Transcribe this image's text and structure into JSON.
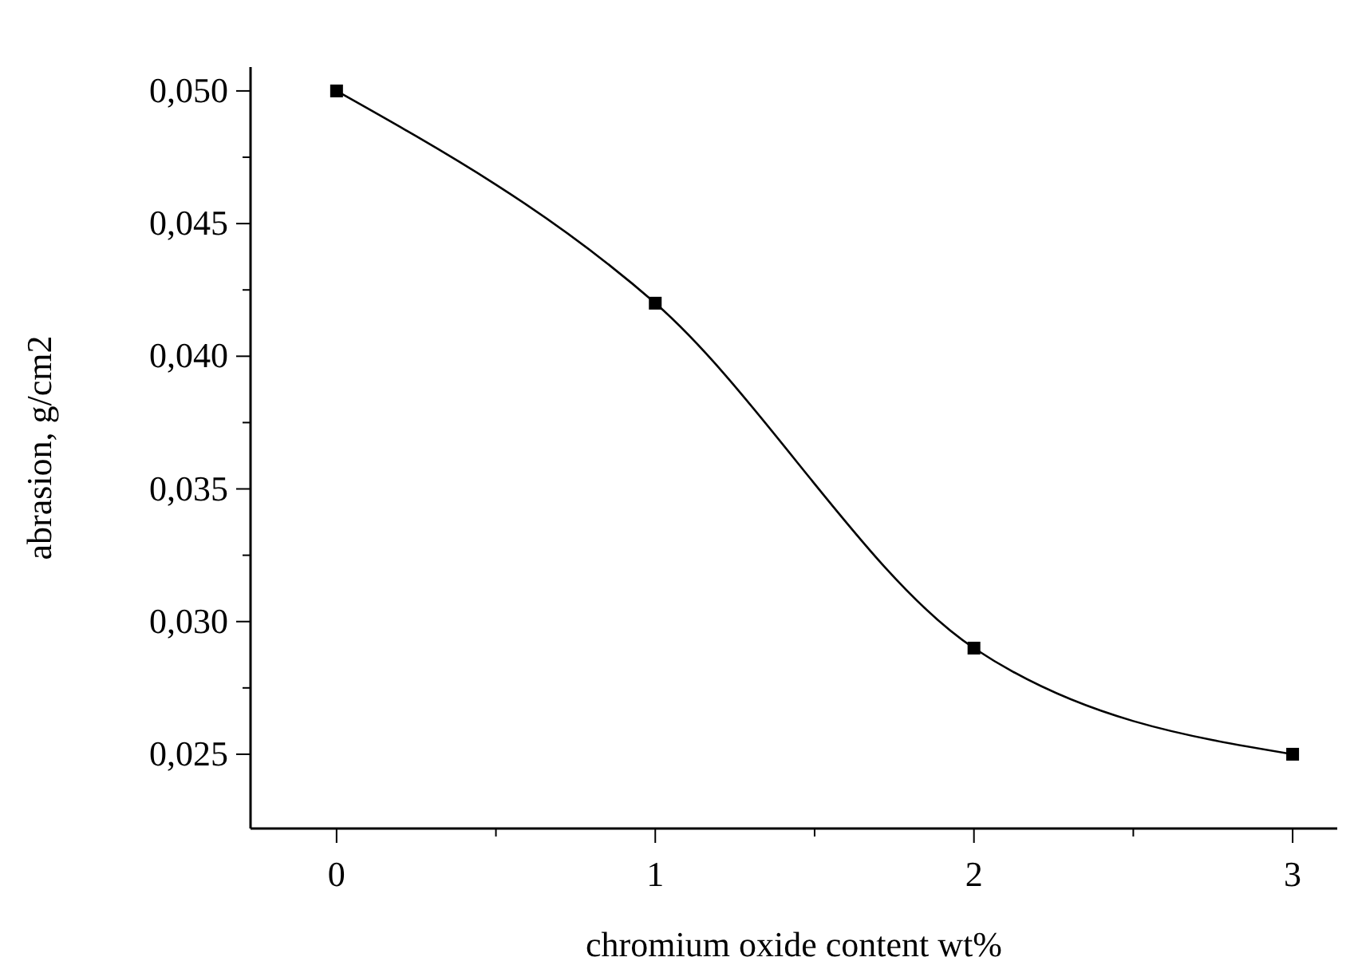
{
  "chart_data": {
    "type": "line",
    "xlabel": "chromium oxide content   wt%",
    "ylabel": "abrasion, g/cm2",
    "x": [
      0,
      1,
      2,
      3
    ],
    "series": [
      {
        "color": "#000000",
        "values": [
          0.05,
          0.042,
          0.029,
          0.025
        ]
      }
    ],
    "xlim": [
      -0.27,
      3.14
    ],
    "ylim": [
      0.0222,
      0.0509
    ],
    "xticks": [
      0,
      {
        "value": 0.5,
        "label": null
      },
      1,
      {
        "value": 1.5,
        "label": null
      },
      2,
      {
        "value": 2.5,
        "label": null
      },
      3
    ],
    "yticks": [
      {
        "value": 0.025,
        "label": "0,025"
      },
      {
        "value": 0.0275,
        "label": null
      },
      {
        "value": 0.03,
        "label": "0,030"
      },
      {
        "value": 0.0325,
        "label": null
      },
      {
        "value": 0.035,
        "label": "0,035"
      },
      {
        "value": 0.0375,
        "label": null
      },
      {
        "value": 0.04,
        "label": "0,040"
      },
      {
        "value": 0.0425,
        "label": null
      },
      {
        "value": 0.045,
        "label": "0,045"
      },
      {
        "value": 0.0475,
        "label": null
      },
      {
        "value": 0.05,
        "label": "0,050"
      }
    ],
    "marker": "square",
    "line_style": "solid"
  }
}
